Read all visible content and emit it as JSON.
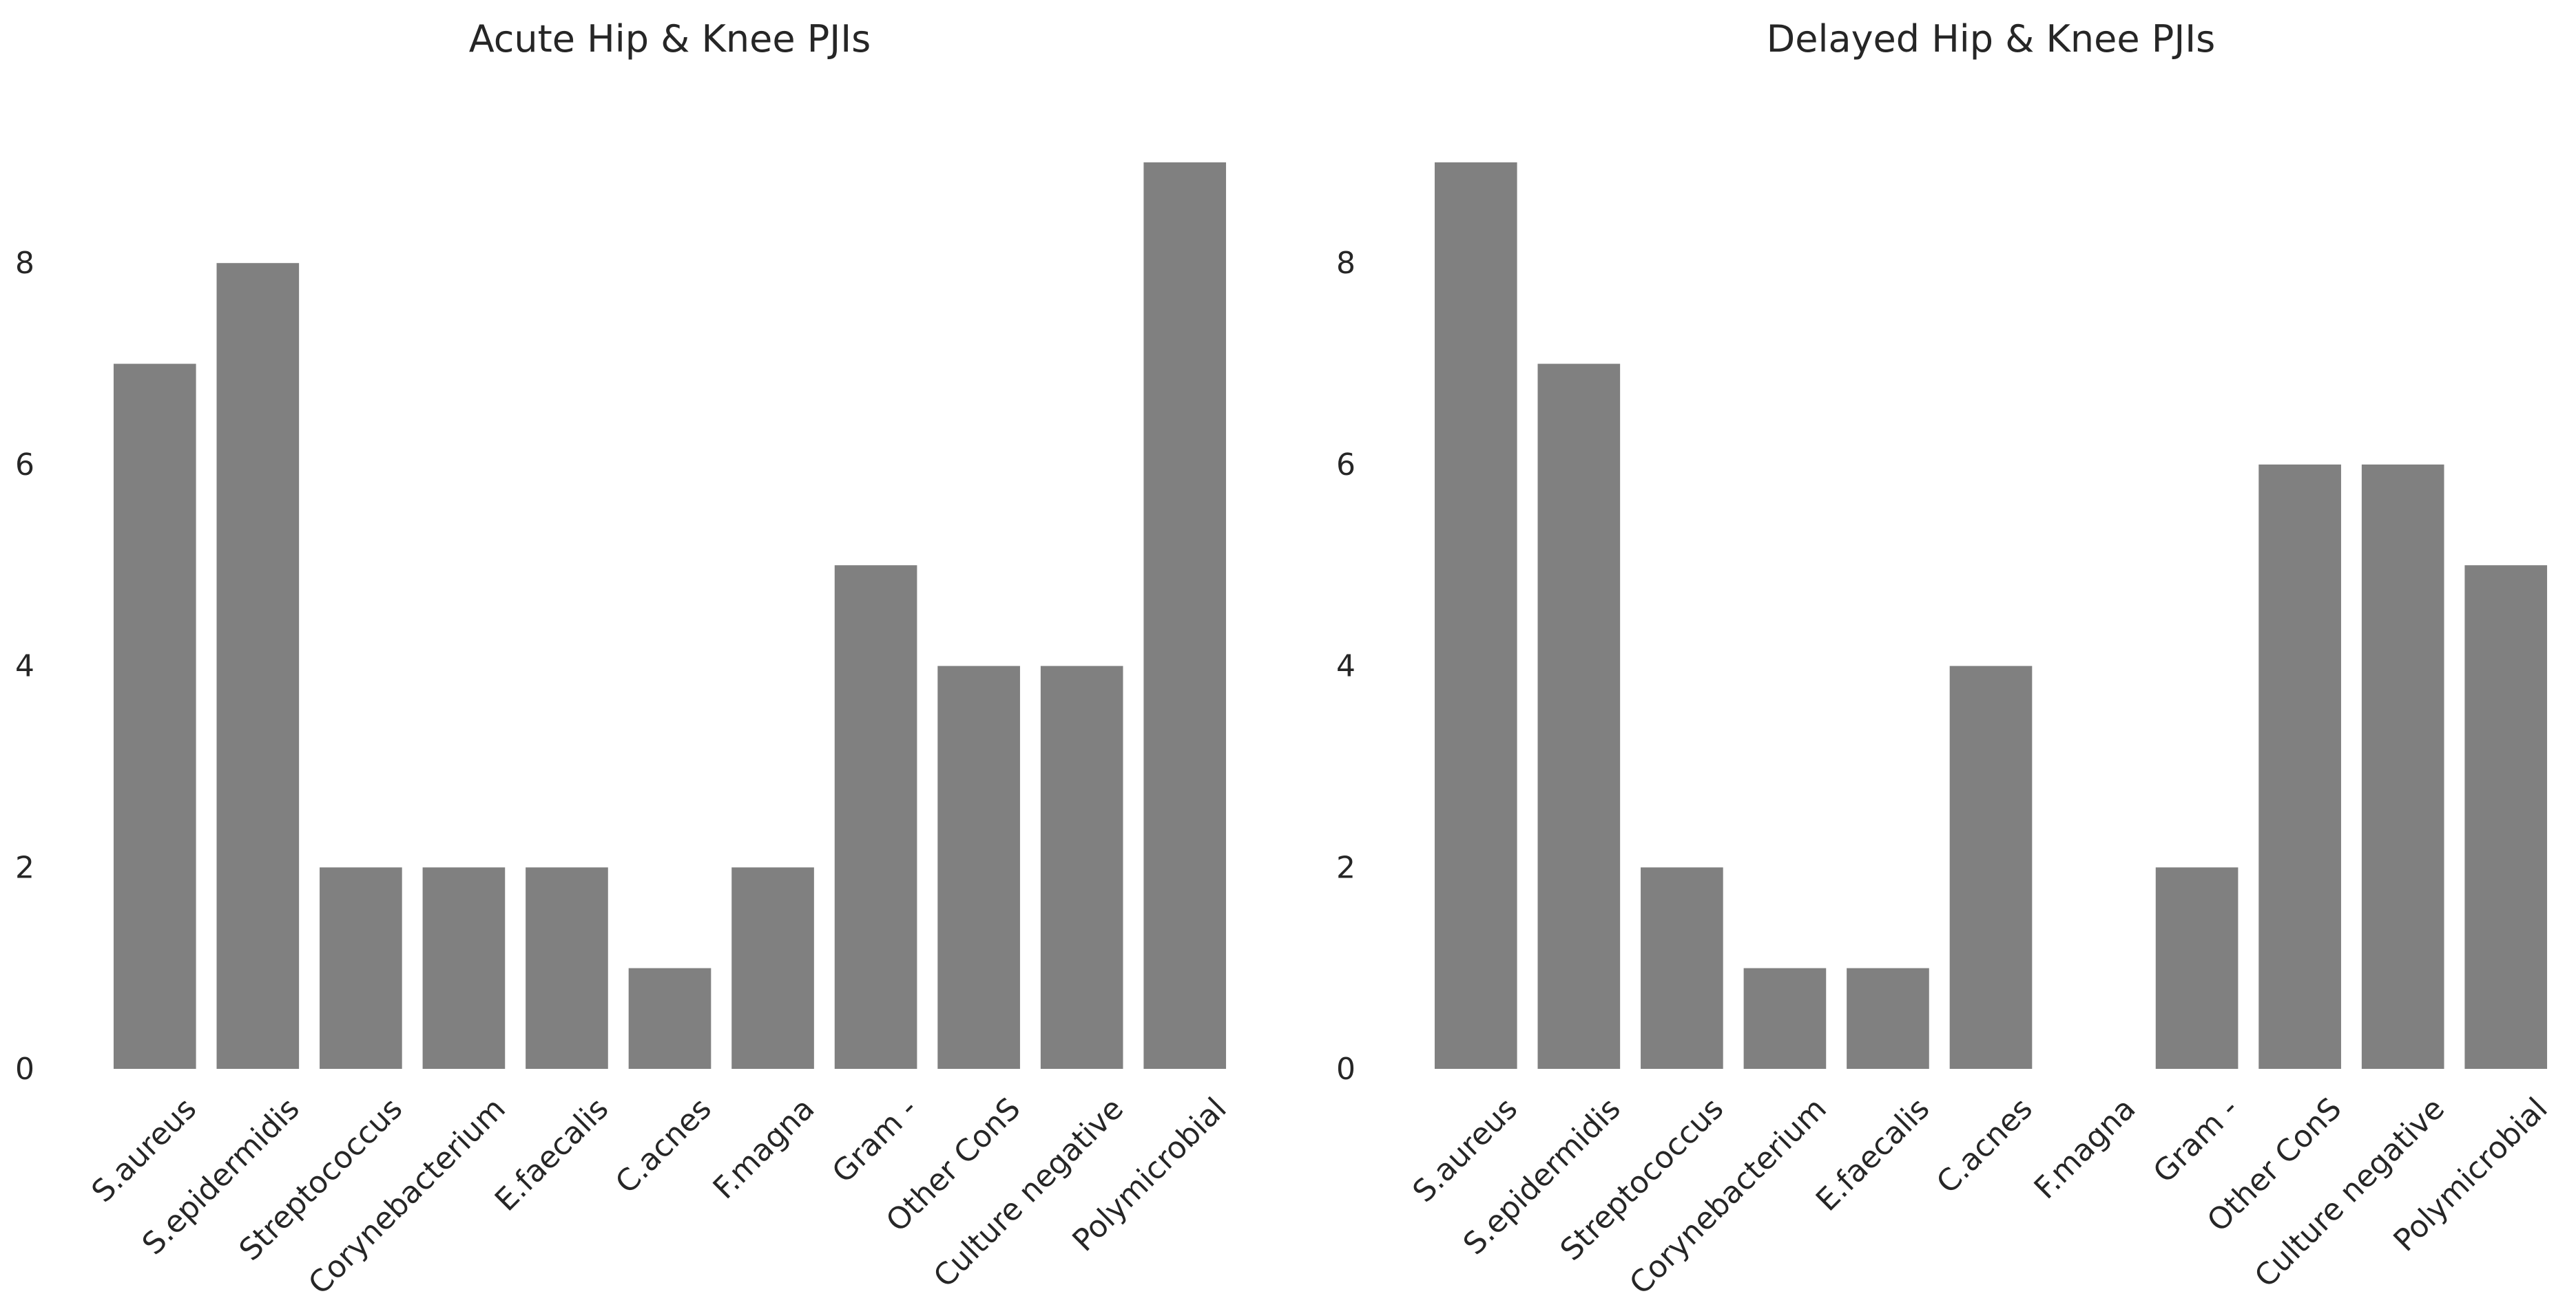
{
  "chart_data": [
    {
      "type": "bar",
      "title": "Acute Hip & Knee PJIs",
      "xlabel": "",
      "ylabel": "",
      "categories": [
        "S.aureus",
        "S.epidermidis",
        "Streptococcus",
        "Corynebacterium",
        "E.faecalis",
        "C.acnes",
        "F.magna",
        "Gram -",
        "Other ConS",
        "Culture negative",
        "Polymicrobial"
      ],
      "values": [
        7,
        8,
        2,
        2,
        2,
        1,
        2,
        5,
        4,
        4,
        9
      ],
      "yticks": [
        "0",
        "2",
        "4",
        "6",
        "8"
      ],
      "ylim": [
        0,
        9.45
      ],
      "grid": false,
      "legend": "none",
      "bar_color": "#808080"
    },
    {
      "type": "bar",
      "title": "Delayed Hip & Knee PJIs",
      "xlabel": "",
      "ylabel": "",
      "categories": [
        "S.aureus",
        "S.epidermidis",
        "Streptococcus",
        "Corynebacterium",
        "E.faecalis",
        "C.acnes",
        "F.magna",
        "Gram -",
        "Other ConS",
        "Culture negative",
        "Polymicrobial"
      ],
      "values": [
        9,
        7,
        2,
        1,
        1,
        4,
        0,
        2,
        6,
        6,
        5
      ],
      "yticks": [
        "0",
        "2",
        "4",
        "6",
        "8"
      ],
      "ylim": [
        0,
        9.45
      ],
      "grid": false,
      "legend": "none",
      "bar_color": "#808080"
    }
  ]
}
